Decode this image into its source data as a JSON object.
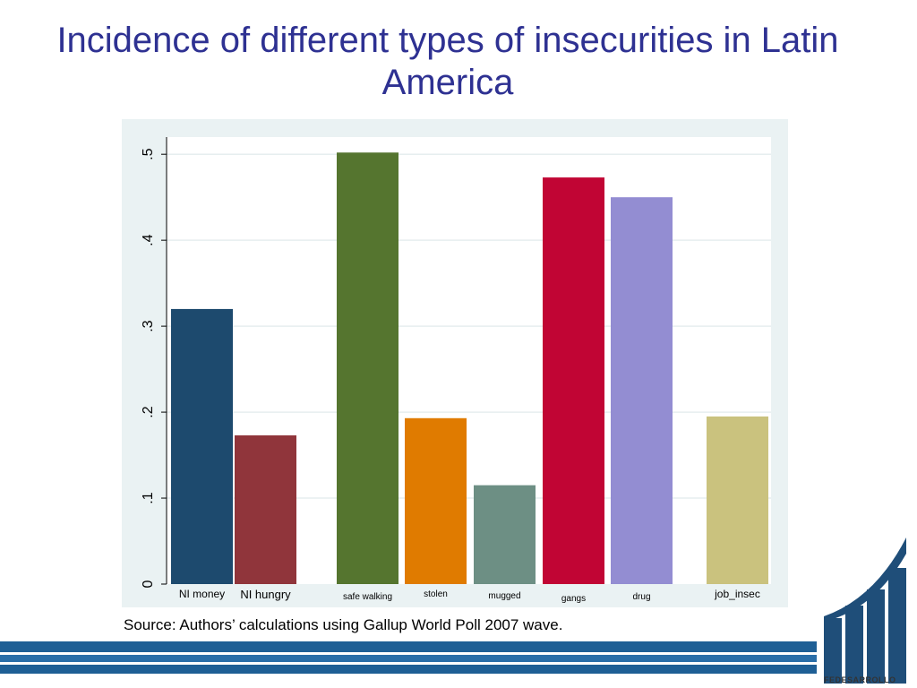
{
  "slide": {
    "title": "Incidence of different types of insecurities in Latin America",
    "source": "Source: Authors’ calculations using Gallup World Poll 2007 wave.",
    "logo_text": "FEDESARROLLO"
  },
  "colors": {
    "title": "#2e3192",
    "chart_background": "#eaf2f3",
    "plot_background": "#ffffff",
    "footer_blue": "#1f5f95",
    "logo_blue": "#1f4e79"
  },
  "chart_data": {
    "type": "bar",
    "categories": [
      "NI money",
      "NI hungry",
      "safe walking",
      "stolen",
      "mugged",
      "gangs",
      "drug",
      "job_insec"
    ],
    "values": [
      0.32,
      0.173,
      0.502,
      0.193,
      0.115,
      0.473,
      0.45,
      0.195
    ],
    "colors": [
      "#1d4a6e",
      "#90353b",
      "#55752f",
      "#e07b00",
      "#6d8f84",
      "#c10534",
      "#938dd2",
      "#cac27e"
    ],
    "yticks": [
      0,
      0.1,
      0.2,
      0.3,
      0.4,
      0.5
    ],
    "ytick_labels": [
      "0",
      ".1",
      ".2",
      ".3",
      ".4",
      ".5"
    ],
    "ylim": [
      0,
      0.52
    ],
    "grid": true,
    "legend": "none"
  }
}
